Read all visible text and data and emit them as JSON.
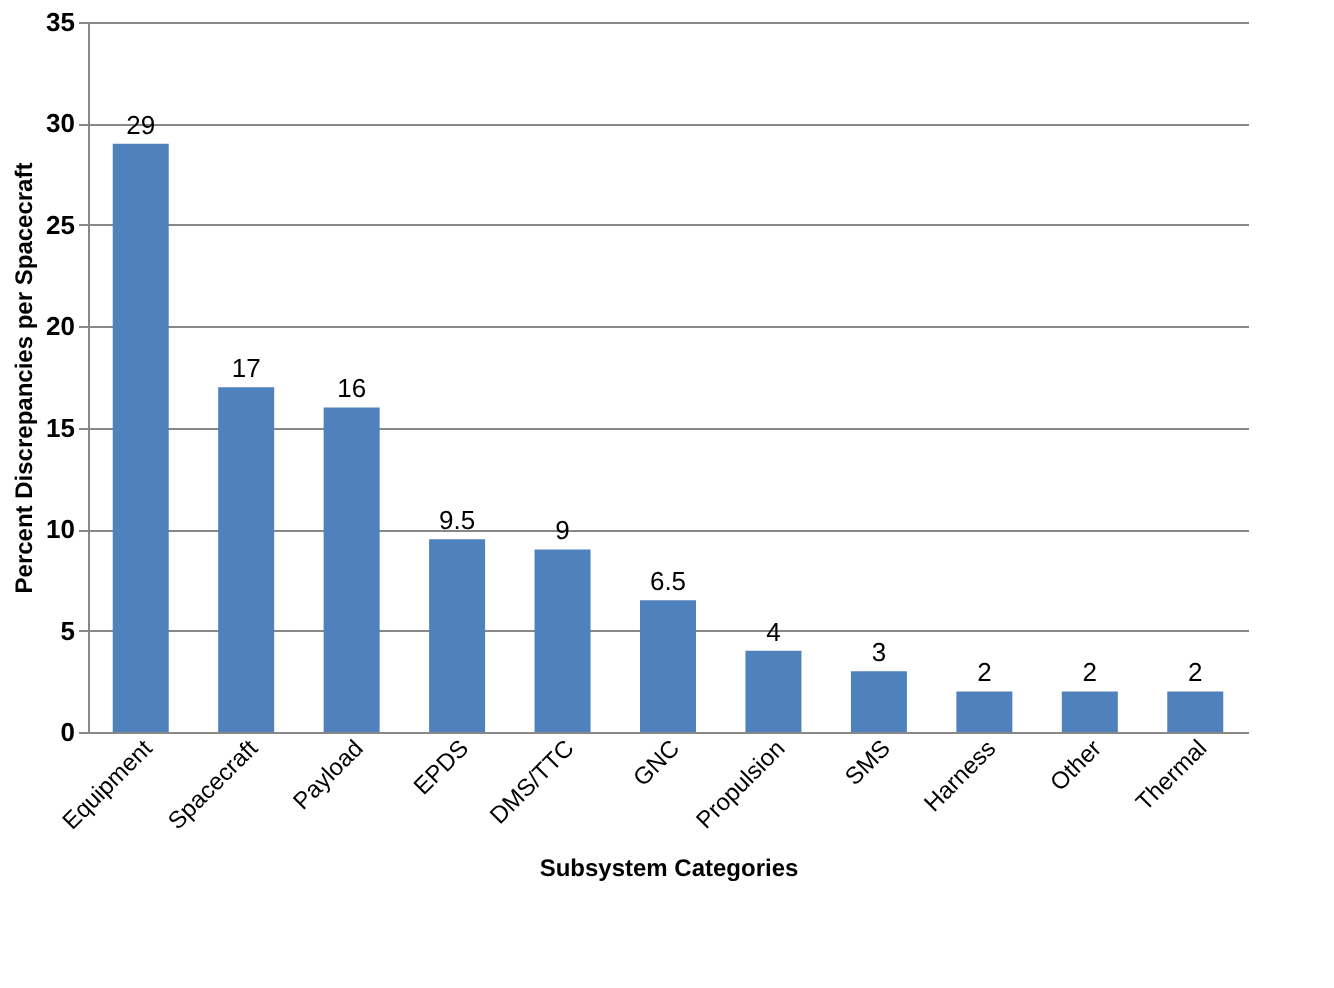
{
  "chart_data": {
    "type": "bar",
    "xlabel": "Subsystem Categories",
    "ylabel": "Percent Discrepancies per Spacecraft",
    "categories": [
      "Equipment",
      "Spacecraft",
      "Payload",
      "EPDS",
      "DMS/TTC",
      "GNC",
      "Propulsion",
      "SMS",
      "Harness",
      "Other",
      "Thermal"
    ],
    "values": [
      29,
      17,
      16,
      9.5,
      9,
      6.5,
      4,
      3,
      2,
      2,
      2
    ],
    "color": "#4f81bd",
    "ylim": [
      0,
      35
    ],
    "yticks": [
      0,
      5,
      10,
      15,
      20,
      25,
      30,
      35
    ],
    "grid": "y",
    "data_labels": true
  }
}
